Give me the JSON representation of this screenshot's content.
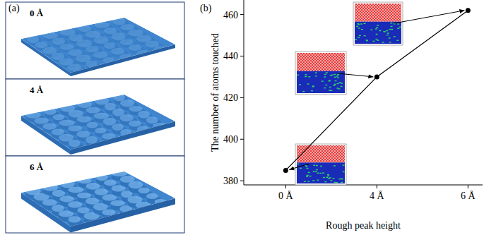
{
  "surfaces": {
    "label": "(a)",
    "panels": [
      {
        "label": "0 Å"
      },
      {
        "label": "4 Å"
      },
      {
        "label": "6 Å"
      }
    ]
  },
  "chart_data": {
    "type": "line",
    "title": "(b)",
    "x_label": "Rough peak height",
    "y_label": "The number of atoms touched",
    "categories": [
      "0 Å",
      "4 Å",
      "6 Å"
    ],
    "values": [
      385,
      430,
      462
    ],
    "color": "#000000",
    "marker": "circle",
    "ylim": [
      378,
      467
    ],
    "yticks": [
      380,
      400,
      420,
      440,
      460
    ],
    "grid": false
  }
}
